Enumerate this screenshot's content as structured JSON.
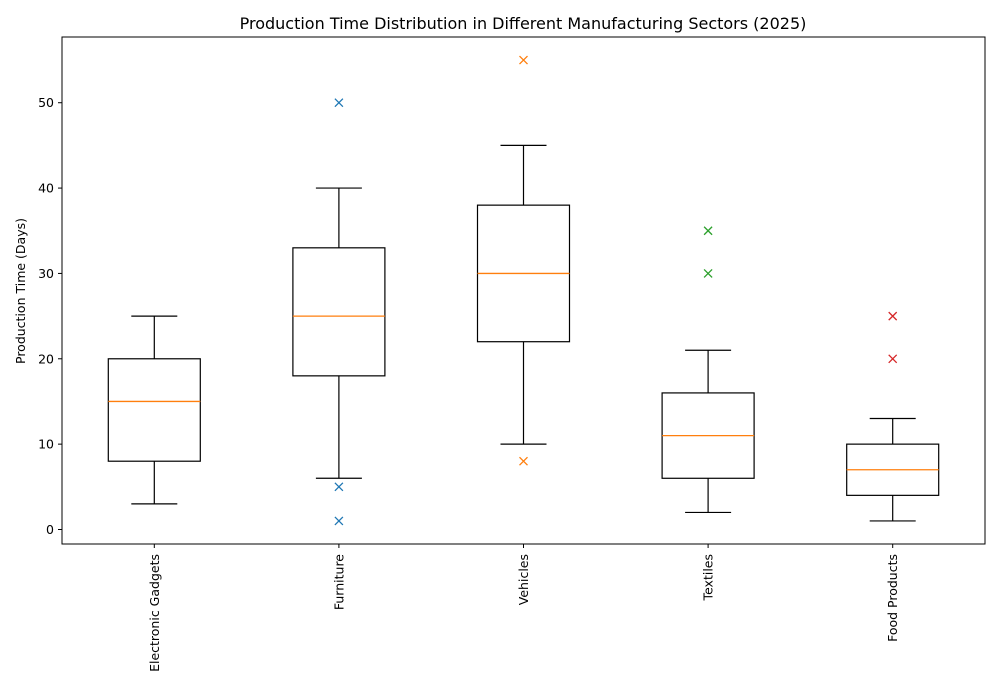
{
  "chart_data": {
    "type": "boxplot",
    "title": "Production Time Distribution in Different Manufacturing Sectors (2025)",
    "xlabel": "",
    "ylabel": "Production Time (Days)",
    "ylim": [
      -1.7,
      57.7
    ],
    "yticks": [
      0,
      10,
      20,
      30,
      40,
      50
    ],
    "categories": [
      "Electronic Gadgets",
      "Furniture",
      "Vehicles",
      "Textiles",
      "Food Products"
    ],
    "boxes": [
      {
        "category": "Electronic Gadgets",
        "whisker_low": 3,
        "q1": 8,
        "median": 15,
        "q3": 20,
        "whisker_high": 25,
        "outliers": []
      },
      {
        "category": "Furniture",
        "whisker_low": 6,
        "q1": 18,
        "median": 25,
        "q3": 33,
        "whisker_high": 40,
        "outliers": [
          50,
          5,
          1
        ]
      },
      {
        "category": "Vehicles",
        "whisker_low": 10,
        "q1": 22,
        "median": 30,
        "q3": 38,
        "whisker_high": 45,
        "outliers": [
          55,
          8
        ]
      },
      {
        "category": "Textiles",
        "whisker_low": 2,
        "q1": 6,
        "median": 11,
        "q3": 16,
        "whisker_high": 21,
        "outliers": [
          35,
          30
        ]
      },
      {
        "category": "Food Products",
        "whisker_low": 1,
        "q1": 4,
        "median": 7,
        "q3": 10,
        "whisker_high": 13,
        "outliers": [
          25,
          20
        ]
      }
    ],
    "outlier_marker": "x",
    "outlier_colors": [
      "#1f77b4",
      "#1f77b4",
      "#ff7f0e",
      "#2ca02c",
      "#d62728"
    ],
    "median_color": "#ff7f0e",
    "box_color": "#000000",
    "grid": false
  }
}
